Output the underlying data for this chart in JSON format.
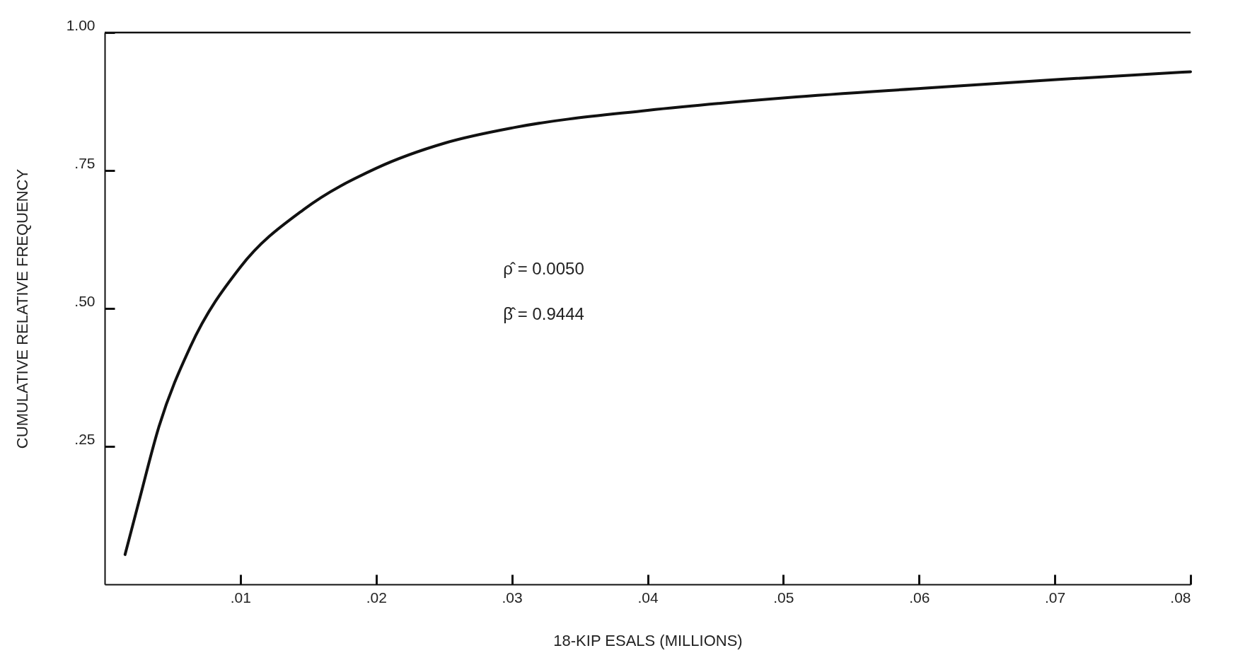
{
  "chart_data": {
    "type": "line",
    "xlabel": "18-KIP ESALS (MILLIONS)",
    "ylabel": "CUMULATIVE RELATIVE FREQUENCY",
    "x": [
      0.0015,
      0.0025,
      0.004,
      0.0063,
      0.01,
      0.0147,
      0.02,
      0.0251,
      0.0302,
      0.04,
      0.0503,
      0.0603,
      0.0703,
      0.08
    ],
    "series": [
      {
        "color": "#111111",
        "values": [
          0.054,
          0.148,
          0.286,
          0.43,
          0.575,
          0.68,
          0.754,
          0.8,
          0.828,
          0.859,
          0.882,
          0.899,
          0.915,
          0.929
        ]
      }
    ],
    "xlim": [
      0,
      0.08
    ],
    "ylim": [
      0,
      1
    ],
    "xticks": [
      {
        "value": 0.01,
        "label": ".01"
      },
      {
        "value": 0.02,
        "label": ".02"
      },
      {
        "value": 0.03,
        "label": ".03"
      },
      {
        "value": 0.04,
        "label": ".04"
      },
      {
        "value": 0.05,
        "label": ".05"
      },
      {
        "value": 0.06,
        "label": ".06"
      },
      {
        "value": 0.07,
        "label": ".07"
      },
      {
        "value": 0.08,
        "label": ".08"
      }
    ],
    "yticks": [
      {
        "value": 0.25,
        "label": ".25"
      },
      {
        "value": 0.5,
        "label": ".50"
      },
      {
        "value": 0.75,
        "label": ".75"
      },
      {
        "value": 1,
        "label": "1.00"
      }
    ],
    "ref_lines": [
      {
        "axis": "y",
        "value": 1
      }
    ],
    "annotations": [
      "ρ̂ = 0.0050",
      "β̂ = 0.9444"
    ],
    "grid": false,
    "marker": "none",
    "line_style": "solid"
  }
}
